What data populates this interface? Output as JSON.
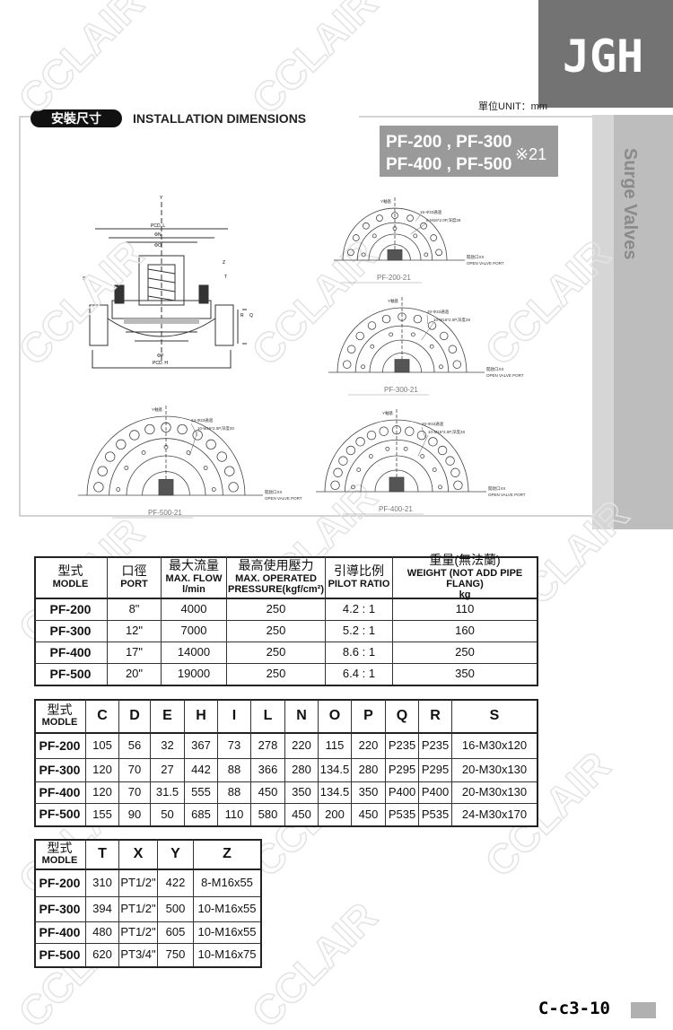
{
  "header": {
    "brand": "JGH",
    "side_tab": "Surge Valves",
    "unit": "單位UNIT：mm"
  },
  "section": {
    "title_zh": "安裝尺寸",
    "title_en": "INSTALLATION DIMENSIONS",
    "models": [
      "PF-200 , PF-300",
      "PF-400 , PF-500"
    ],
    "code": "※21"
  },
  "watermark": "CCLAIR",
  "section_drawing": {
    "labels": [
      "Y",
      "PCD. L",
      "ΦN",
      "ΦO",
      "S",
      "Z",
      "T",
      "R",
      "Q",
      "ΦP",
      "PCD. H"
    ]
  },
  "drawings": [
    {
      "label": "PF-200-21",
      "notes": [
        "Y軸基",
        "16-Φ33通過",
        "8-M16*2.0P,深度28",
        "開啟口XX",
        "OPEN VALVE PORT"
      ]
    },
    {
      "label": "PF-300-21",
      "notes": [
        "Y軸基",
        "20-Φ33通過",
        "10-M16*2.0P,深度28",
        "開啟口XX",
        "OPEN VALVE PORT"
      ]
    },
    {
      "label": "PF-500-21",
      "notes": [
        "Y軸基",
        "24-Φ33通過",
        "10-M16*2.0P,深度30",
        "開啟口XX",
        "OPEN VALVE PORT"
      ]
    },
    {
      "label": "PF-400-21",
      "notes": [
        "Y軸基",
        "20-Φ33通過",
        "10-M16*2.0P,深度28",
        "開啟口XX",
        "OPEN VALVE PORT"
      ]
    }
  ],
  "table1": {
    "header": [
      [
        "型式",
        "MODLE"
      ],
      [
        "口徑",
        "PORT"
      ],
      [
        "最大流量",
        "MAX. FLOW",
        "l/min"
      ],
      [
        "最高使用壓力",
        "MAX. OPERATED",
        "PRESSURE(kgf/cm²)"
      ],
      [
        "引導比例",
        "PILOT RATIO"
      ],
      [
        "重量(無法蘭)",
        "WEIGHT (NOT ADD PIPE FLANG)",
        "kg"
      ]
    ],
    "rows": [
      [
        "PF-200",
        "8\"",
        "4000",
        "250",
        "4.2 : 1",
        "110"
      ],
      [
        "PF-300",
        "12\"",
        "7000",
        "250",
        "5.2 : 1",
        "160"
      ],
      [
        "PF-400",
        "17\"",
        "14000",
        "250",
        "8.6 : 1",
        "250"
      ],
      [
        "PF-500",
        "20\"",
        "19000",
        "250",
        "6.4 : 1",
        "350"
      ]
    ]
  },
  "table2": {
    "header": [
      [
        "型式",
        "MODLE"
      ],
      [
        "C"
      ],
      [
        "D"
      ],
      [
        "E"
      ],
      [
        "H"
      ],
      [
        "I"
      ],
      [
        "L"
      ],
      [
        "N"
      ],
      [
        "O"
      ],
      [
        "P"
      ],
      [
        "Q"
      ],
      [
        "R"
      ],
      [
        "S"
      ]
    ],
    "rows": [
      [
        "PF-200",
        "105",
        "56",
        "32",
        "367",
        "73",
        "278",
        "220",
        "115",
        "220",
        "P235",
        "P235",
        "16-M30x120"
      ],
      [
        "PF-300",
        "120",
        "70",
        "27",
        "442",
        "88",
        "366",
        "280",
        "134.5",
        "280",
        "P295",
        "P295",
        "20-M30x130"
      ],
      [
        "PF-400",
        "120",
        "70",
        "31.5",
        "555",
        "88",
        "450",
        "350",
        "134.5",
        "350",
        "P400",
        "P400",
        "20-M30x130"
      ],
      [
        "PF-500",
        "155",
        "90",
        "50",
        "685",
        "110",
        "580",
        "450",
        "200",
        "450",
        "P535",
        "P535",
        "24-M30x170"
      ]
    ]
  },
  "table3": {
    "header": [
      [
        "型式",
        "MODLE"
      ],
      [
        "T"
      ],
      [
        "X"
      ],
      [
        "Y"
      ],
      [
        "Z"
      ]
    ],
    "rows": [
      [
        "PF-200",
        "310",
        "PT1/2\"",
        "422",
        "8-M16x55"
      ],
      [
        "PF-300",
        "394",
        "PT1/2\"",
        "500",
        "10-M16x55"
      ],
      [
        "PF-400",
        "480",
        "PT1/2\"",
        "605",
        "10-M16x55"
      ],
      [
        "PF-500",
        "620",
        "PT3/4\"",
        "750",
        "10-M16x75"
      ]
    ]
  },
  "footer": {
    "page": "C-c3-10"
  }
}
